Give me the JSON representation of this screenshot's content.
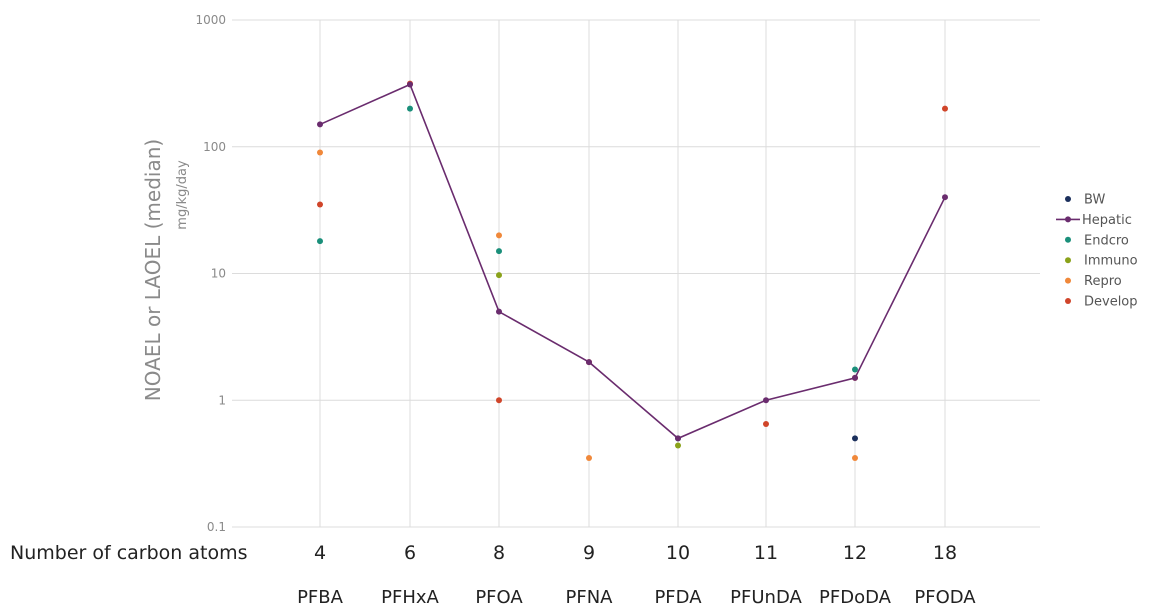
{
  "chart_data": {
    "type": "scatter",
    "y_scale": "log",
    "ylim": [
      0.1,
      1000
    ],
    "y_ticks": [
      "0.1",
      "1",
      "10",
      "100",
      "1000"
    ],
    "ylabel": "NOAEL or LAOEL (median)",
    "ylabel_unit": "mg/kg/day",
    "x_row_label": "Number of carbon atoms",
    "categories": [
      "4",
      "6",
      "8",
      "9",
      "10",
      "11",
      "12",
      "18"
    ],
    "compounds": [
      "PFBA",
      "PFHxA",
      "PFOA",
      "PFNA",
      "PFDA",
      "PFUnDA",
      "PFDoDA",
      "PFODA"
    ],
    "grid": true,
    "legend_position": "right",
    "series": [
      {
        "name": "BW",
        "kind": "markers",
        "color": "#1b2f5c",
        "points": [
          {
            "x": "12",
            "y": 0.5
          }
        ]
      },
      {
        "name": "Hepatic",
        "kind": "line",
        "color": "#6a2c6e",
        "points": [
          {
            "x": "4",
            "y": 150
          },
          {
            "x": "6",
            "y": 310
          },
          {
            "x": "8",
            "y": 5
          },
          {
            "x": "9",
            "y": 2
          },
          {
            "x": "10",
            "y": 0.5
          },
          {
            "x": "11",
            "y": 1
          },
          {
            "x": "12",
            "y": 1.5
          },
          {
            "x": "18",
            "y": 40
          }
        ]
      },
      {
        "name": "Endcro",
        "kind": "markers",
        "color": "#1a8f7a",
        "points": [
          {
            "x": "4",
            "y": 18
          },
          {
            "x": "6",
            "y": 200
          },
          {
            "x": "8",
            "y": 15
          },
          {
            "x": "10",
            "y": 0.5
          },
          {
            "x": "12",
            "y": 1.75
          }
        ]
      },
      {
        "name": "Immuno",
        "kind": "markers",
        "color": "#8aa21a",
        "points": [
          {
            "x": "8",
            "y": 9.7
          },
          {
            "x": "10",
            "y": 0.44
          }
        ]
      },
      {
        "name": "Repro",
        "kind": "markers",
        "color": "#f0883a",
        "points": [
          {
            "x": "4",
            "y": 90
          },
          {
            "x": "8",
            "y": 20
          },
          {
            "x": "9",
            "y": 0.35
          },
          {
            "x": "12",
            "y": 0.35
          }
        ]
      },
      {
        "name": "Develop",
        "kind": "markers",
        "color": "#d0452a",
        "points": [
          {
            "x": "4",
            "y": 35
          },
          {
            "x": "6",
            "y": 315
          },
          {
            "x": "8",
            "y": 1
          },
          {
            "x": "9",
            "y": 2
          },
          {
            "x": "11",
            "y": 0.65
          },
          {
            "x": "12",
            "y": 1.5
          },
          {
            "x": "18",
            "y": 200
          }
        ]
      }
    ]
  }
}
